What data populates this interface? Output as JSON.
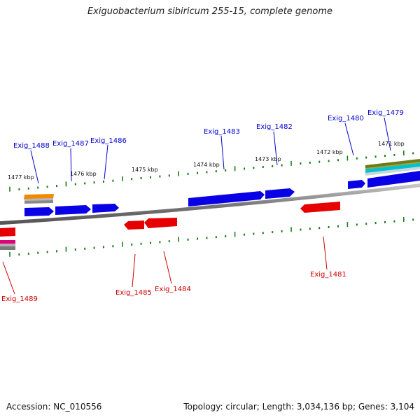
{
  "title": "Exiguobacterium sibiricum 255-15, complete genome",
  "footer": {
    "accession": "Accession: NC_010556",
    "topology": "Topology: circular; Length: 3,034,136 bp; Genes: 3,104"
  },
  "colors": {
    "forward_gene": "#0a00e6",
    "reverse_gene": "#e60000",
    "backbone": "#8c8c8c",
    "tick": "#1a7a1a",
    "forward_label": "#0000cc",
    "reverse_label": "#cc0000",
    "scale_label": "#111111"
  },
  "scale_labels": [
    "1477 kbp",
    "1476 kbp",
    "1475 kbp",
    "1474 kbp",
    "1473 kbp",
    "1472 kbp",
    "1471 kbp"
  ],
  "forward_genes": [
    "Exig_1488",
    "Exig_1487",
    "Exig_1486",
    "Exig_1483",
    "Exig_1482",
    "Exig_1480",
    "Exig_1479"
  ],
  "reverse_genes": [
    "Exig_1489",
    "Exig_1485",
    "Exig_1484",
    "Exig_1481"
  ]
}
